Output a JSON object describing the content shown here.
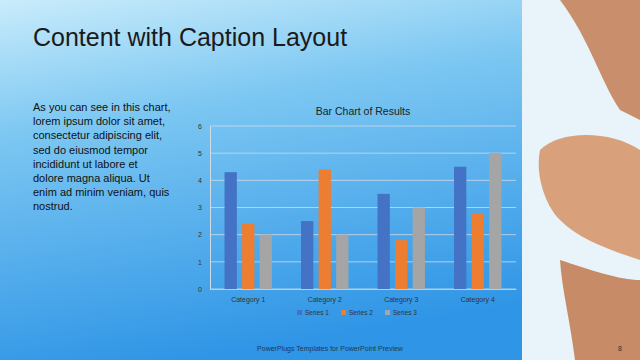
{
  "slide": {
    "title": "Content with Caption Layout",
    "caption_lines": [
      "As you can see in this chart,",
      "lorem ipsum dolor sit amet,",
      "consectetur adipiscing elit,",
      "sed do eiusmod tempor",
      "incididunt ut labore et",
      "dolore magna aliqua. Ut",
      "enim ad minim veniam, quis",
      "nostrud."
    ],
    "footer": "PowerPlugs Templates for PowerPoint Preview",
    "page_number": 8
  },
  "chart_data": {
    "type": "bar",
    "title": "Bar Chart of Results",
    "categories": [
      "Category 1",
      "Category 2",
      "Category 3",
      "Category 4"
    ],
    "series": [
      {
        "name": "Series 1",
        "color": "#4472c4",
        "values": [
          4.3,
          2.5,
          3.5,
          4.5
        ]
      },
      {
        "name": "Series 2",
        "color": "#ed7d31",
        "values": [
          2.4,
          4.4,
          1.8,
          2.8
        ]
      },
      {
        "name": "Series 3",
        "color": "#a5a5a5",
        "values": [
          2,
          2,
          3,
          5
        ]
      }
    ],
    "ylim": [
      0,
      6
    ],
    "yticks": [
      0,
      1,
      2,
      3,
      4,
      5,
      6
    ],
    "grid": true,
    "legend": "bottom"
  }
}
